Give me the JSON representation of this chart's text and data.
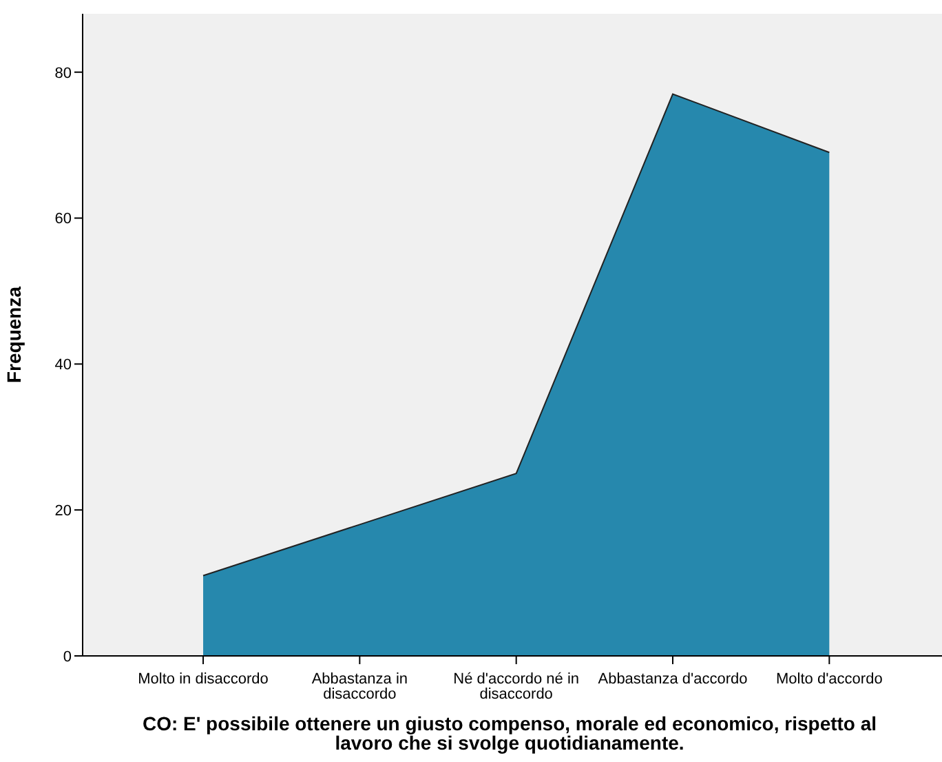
{
  "chart_data": {
    "type": "area",
    "xlabel": "CO: E' possibile ottenere un giusto compenso, morale ed economico, rispetto al lavoro che si svolge quotidianamente.",
    "ylabel": "Frequenza",
    "categories": [
      "Molto in disaccordo",
      "Abbastanza in disaccordo",
      "Né d'accordo né in disaccordo",
      "Abbastanza d'accordo",
      "Molto d'accordo"
    ],
    "values": [
      11,
      18,
      25,
      77,
      69
    ],
    "color": "#2688ad",
    "ylim": [
      0,
      88
    ],
    "yticks": [
      0,
      20,
      40,
      60,
      80
    ],
    "grid": false
  }
}
